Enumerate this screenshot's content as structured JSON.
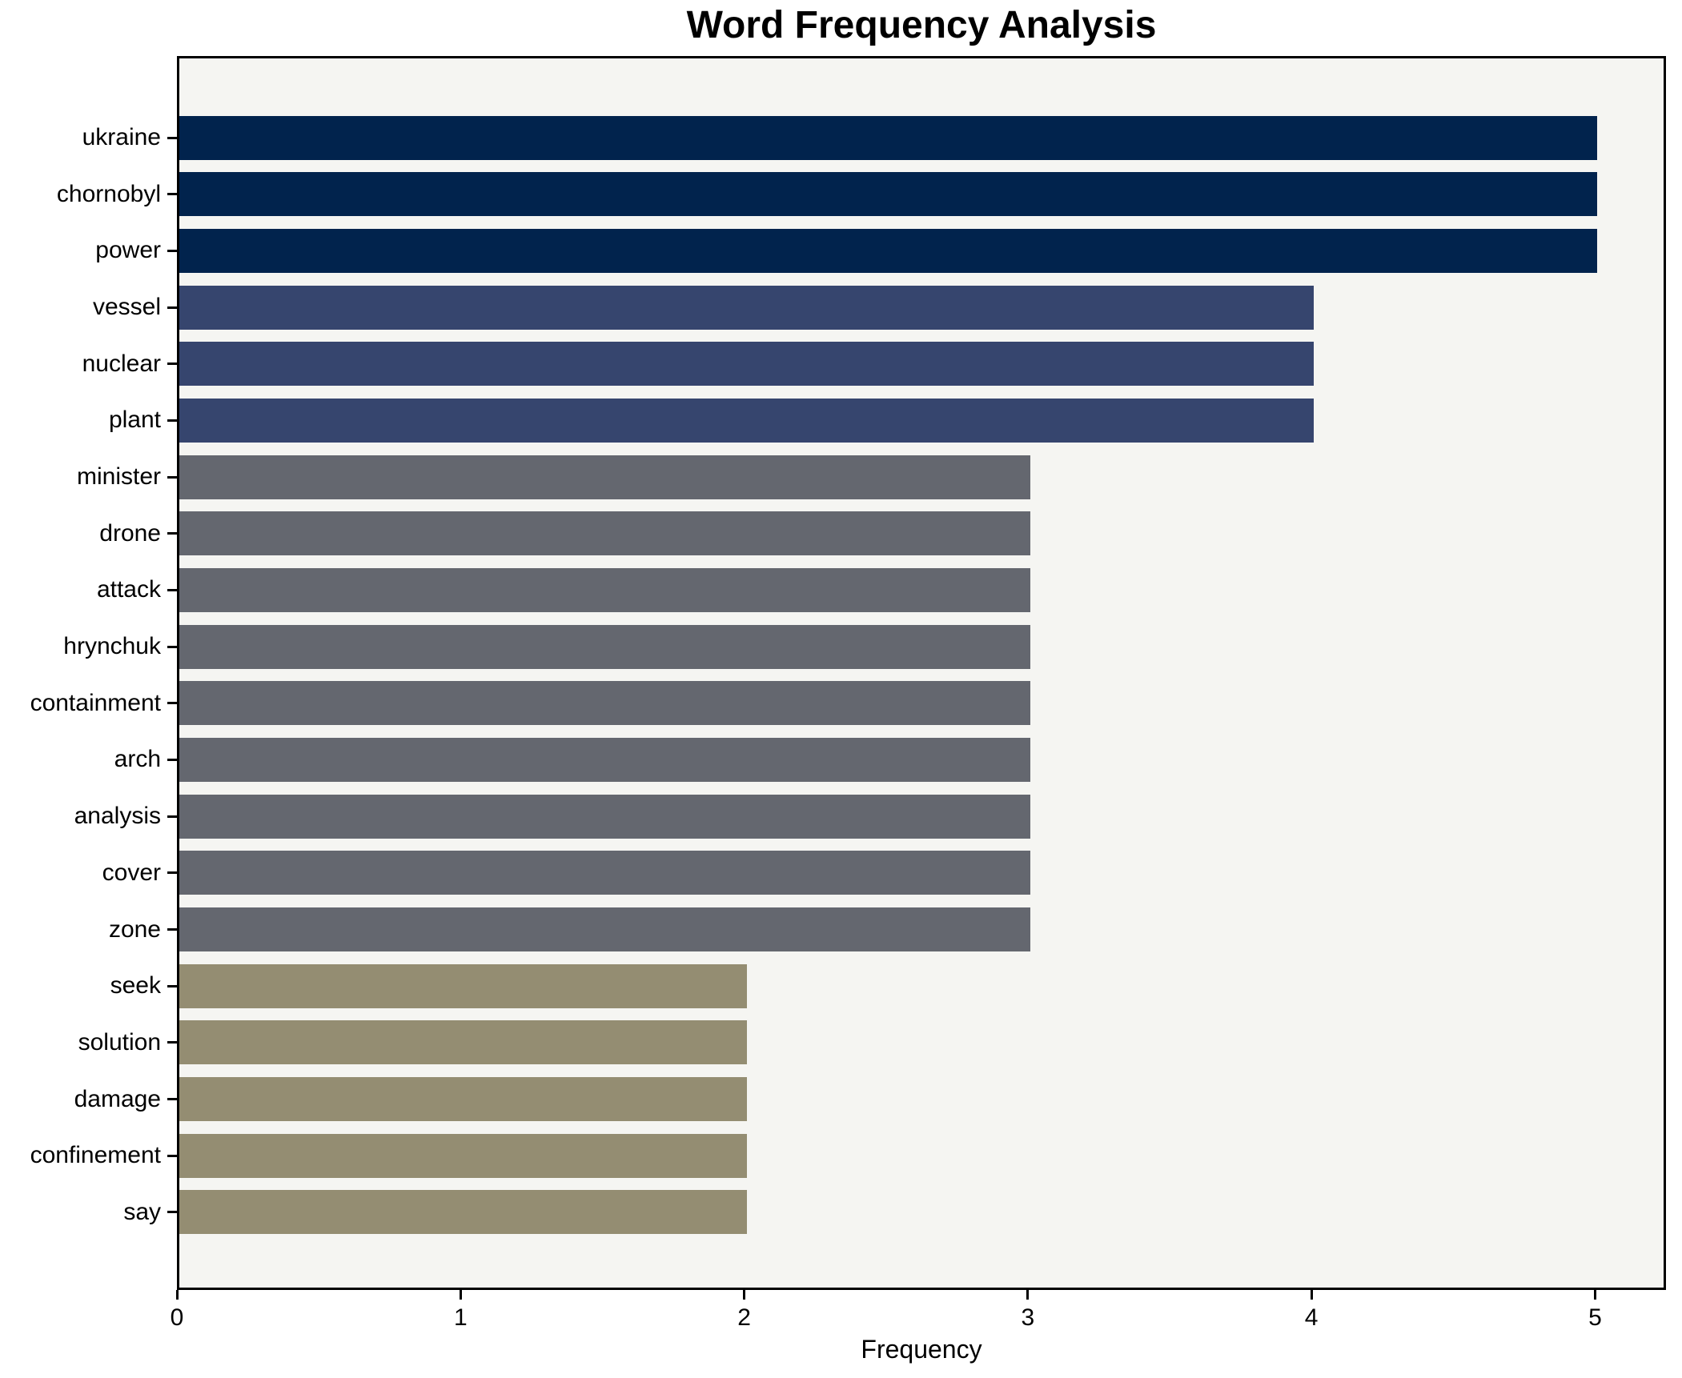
{
  "figure": {
    "background": "#ffffff"
  },
  "chart_data": {
    "type": "bar",
    "orientation": "horizontal",
    "title": "Word Frequency Analysis",
    "xlabel": "Frequency",
    "ylabel": "",
    "categories": [
      "ukraine",
      "chornobyl",
      "power",
      "vessel",
      "nuclear",
      "plant",
      "minister",
      "drone",
      "attack",
      "hrynchuk",
      "containment",
      "arch",
      "analysis",
      "cover",
      "zone",
      "seek",
      "solution",
      "damage",
      "confinement",
      "say"
    ],
    "values": [
      5,
      5,
      5,
      4,
      4,
      4,
      3,
      3,
      3,
      3,
      3,
      3,
      3,
      3,
      3,
      2,
      2,
      2,
      2,
      2
    ],
    "bar_colors": [
      "#01234d",
      "#01234d",
      "#01234d",
      "#36456e",
      "#36456e",
      "#36456e",
      "#64676f",
      "#64676f",
      "#64676f",
      "#64676f",
      "#64676f",
      "#64676f",
      "#64676f",
      "#64676f",
      "#64676f",
      "#948d72",
      "#948d72",
      "#948d72",
      "#948d72",
      "#948d72"
    ],
    "xlim": [
      0,
      5.25
    ],
    "xticks": [
      0,
      1,
      2,
      3,
      4,
      5
    ],
    "grid": false,
    "legend": null,
    "plot_background": "#f5f5f2",
    "axis_color": "#000000",
    "text_color": "#000000"
  }
}
